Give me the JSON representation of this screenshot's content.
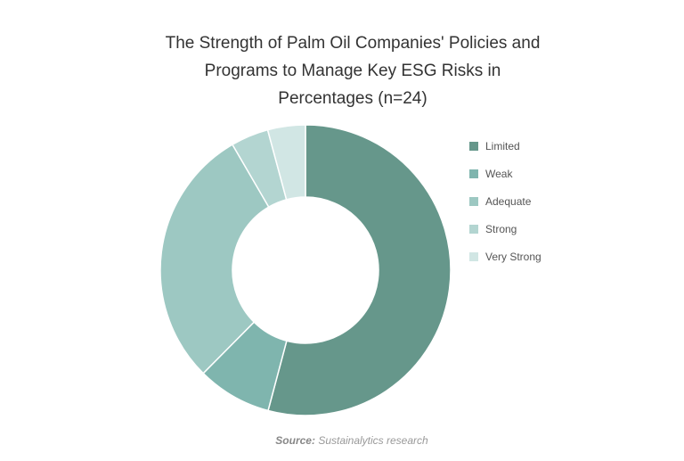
{
  "chart_data": {
    "type": "donut",
    "title": "The Strength of Palm Oil Companies' Policies and Programs to Manage Key ESG Risks in Percentages (n=24)",
    "categories": [
      "Limited",
      "Weak",
      "Adequate",
      "Strong",
      "Very Strong"
    ],
    "values": [
      54.2,
      8.3,
      29.2,
      4.2,
      4.2
    ],
    "colors": [
      "#66978b",
      "#7fb5ae",
      "#9dc8c2",
      "#b3d5d1",
      "#d1e6e4"
    ],
    "legend": "right",
    "source_label": "Source:",
    "source": "Sustainalytics research"
  }
}
